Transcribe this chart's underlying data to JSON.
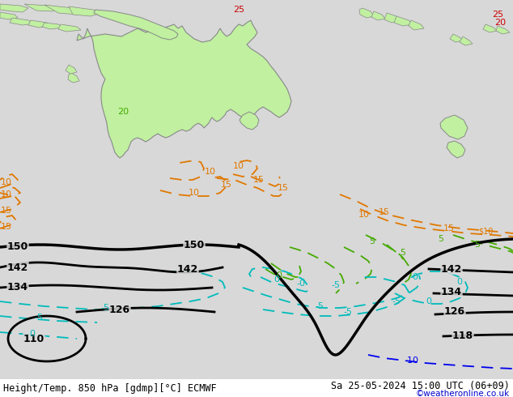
{
  "title_left": "Height/Temp. 850 hPa [gdmp][°C] ECMWF",
  "title_right": "Sa 25-05-2024 15:00 UTC (06+09)",
  "credit": "©weatheronline.co.uk",
  "bg_color": "#d8d8d8",
  "land_color": "#c0f0a0",
  "border_color": "#888888",
  "fig_width": 6.34,
  "fig_height": 4.9,
  "dpi": 100,
  "bottom_text_color": "#000000",
  "credit_color": "#0000cc",
  "contour_color": "#000000",
  "temp_orange": "#e07800",
  "temp_green": "#44aa00",
  "temp_cyan": "#00bbbb",
  "temp_blue": "#0000ee",
  "red_color": "#cc0000"
}
